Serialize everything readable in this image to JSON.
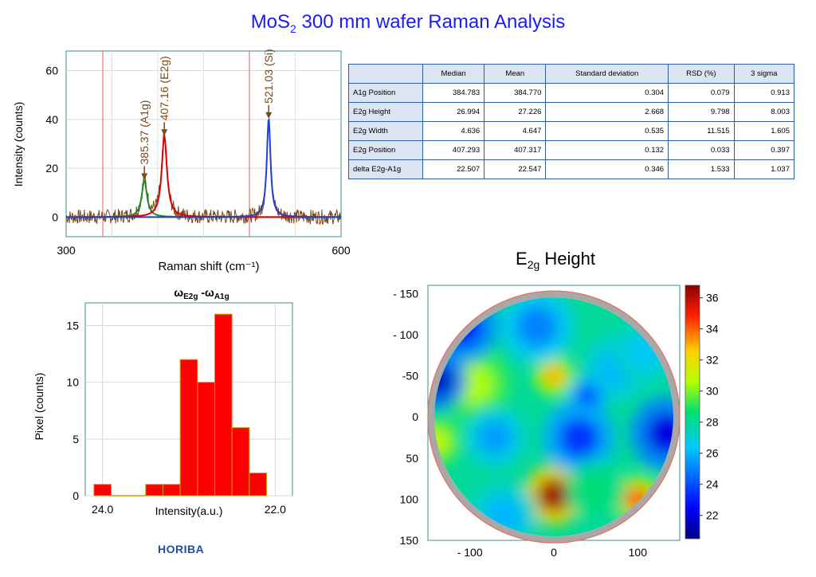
{
  "title": {
    "main": "MoS",
    "sub": "2",
    "rest": " 300 mm wafer Raman Analysis"
  },
  "brand": "HORIBA",
  "colors": {
    "title": "#1a1aff",
    "spectrum": "#7a4a1a",
    "a1g": "#228b22",
    "e2g": "#e00000",
    "si": "#1f3fd6"
  },
  "table": {
    "headers": [
      "",
      "Median",
      "Mean",
      "Standard deviation",
      "RSD (%)",
      "3 sigma"
    ],
    "rows": [
      [
        "A1g Position",
        "384.783",
        "384.770",
        "0.304",
        "0.079",
        "0.913"
      ],
      [
        "E2g Height",
        "26.994",
        "27.226",
        "2.668",
        "9.798",
        "8.003"
      ],
      [
        "E2g Width",
        "4.636",
        "4.647",
        "0.535",
        "11.515",
        "1.605"
      ],
      [
        "E2g Position",
        "407.293",
        "407.317",
        "0.132",
        "0.033",
        "0.397"
      ],
      [
        "delta E2g-A1g",
        "22.507",
        "22.547",
        "0.346",
        "1.533",
        "1.037"
      ]
    ]
  },
  "chart_data": [
    {
      "type": "line",
      "xlabel": "Raman shift (cm⁻¹)",
      "ylabel": "Intensity (counts)",
      "xlim": [
        300,
        600
      ],
      "ylim": [
        -8,
        68
      ],
      "xticks": [
        "300",
        "600"
      ],
      "yticks": [
        "0",
        "20",
        "40",
        "60"
      ],
      "vlines": [
        340,
        500
      ],
      "noise_amplitude": 3,
      "peaks": [
        {
          "name": "A1g",
          "center": 385.37,
          "height": 15,
          "width": 3.5,
          "label": "385.37 (A1g)"
        },
        {
          "name": "E2g",
          "center": 407.16,
          "height": 33,
          "width": 3.5,
          "label": "407.16 (E2g)"
        },
        {
          "name": "Si",
          "center": 521.03,
          "height": 40,
          "width": 2.5,
          "label": "521.03 (Si)"
        }
      ],
      "grid": true
    },
    {
      "type": "bar",
      "title": "ωE2g -ωA1g",
      "xlabel": "Intensity(a.u.)",
      "ylabel": "Pixel (counts)",
      "xlim": [
        24.2,
        21.8
      ],
      "ylim": [
        0,
        17
      ],
      "xticks": [
        "24.0",
        "22.0"
      ],
      "yticks": [
        "0",
        "5",
        "10",
        "15"
      ],
      "bin_width": 0.2,
      "bins": [
        {
          "center": 24.0,
          "value": 1
        },
        {
          "center": 23.8,
          "value": 0
        },
        {
          "center": 23.6,
          "value": 0
        },
        {
          "center": 23.4,
          "value": 1
        },
        {
          "center": 23.2,
          "value": 1
        },
        {
          "center": 23.0,
          "value": 12
        },
        {
          "center": 22.8,
          "value": 10
        },
        {
          "center": 22.6,
          "value": 16
        },
        {
          "center": 22.4,
          "value": 6
        },
        {
          "center": 22.2,
          "value": 2
        }
      ],
      "grid": true
    },
    {
      "type": "heatmap",
      "title": "E2g Height",
      "title_main": "E",
      "title_sub": "2g",
      "title_rest": " Height",
      "xlim": [
        -150,
        150
      ],
      "ylim": [
        -160,
        150
      ],
      "xticks": [
        "- 100",
        "0",
        "100"
      ],
      "yticks": [
        "- 150",
        "- 100",
        "-50",
        "0",
        "50",
        "100",
        "150"
      ],
      "ytick_values": [
        -150,
        -100,
        -50,
        0,
        50,
        100,
        150
      ],
      "xtick_values": [
        -100,
        0,
        100
      ],
      "wafer_radius": 150,
      "colorbar": {
        "min": 20.5,
        "max": 36.8,
        "ticks": [
          "22",
          "24",
          "26",
          "28",
          "30",
          "32",
          "34",
          "36"
        ]
      },
      "base_value": 28,
      "features": [
        {
          "x": 0,
          "y": 95,
          "value": 36.5,
          "r": 18
        },
        {
          "x": 0,
          "y": -50,
          "value": 33,
          "r": 12
        },
        {
          "x": 100,
          "y": 100,
          "value": 34,
          "r": 14
        },
        {
          "x": -95,
          "y": -40,
          "value": 30.5,
          "r": 22
        },
        {
          "x": -140,
          "y": -45,
          "value": 21.5,
          "r": 18
        },
        {
          "x": 135,
          "y": 20,
          "value": 22,
          "r": 22
        },
        {
          "x": -110,
          "y": -110,
          "value": 22.5,
          "r": 22
        },
        {
          "x": 30,
          "y": 25,
          "value": 23.5,
          "r": 22
        },
        {
          "x": -70,
          "y": 25,
          "value": 25.5,
          "r": 18
        },
        {
          "x": -20,
          "y": -110,
          "value": 25,
          "r": 22
        },
        {
          "x": 75,
          "y": -60,
          "value": 26,
          "r": 20
        },
        {
          "x": -60,
          "y": 120,
          "value": 26,
          "r": 20
        },
        {
          "x": 110,
          "y": -80,
          "value": 26.5,
          "r": 20
        },
        {
          "x": 50,
          "y": 90,
          "value": 28.5,
          "r": 18
        },
        {
          "x": -140,
          "y": 30,
          "value": 31,
          "r": 15
        },
        {
          "x": 40,
          "y": -25,
          "value": 24,
          "r": 12
        }
      ]
    }
  ]
}
